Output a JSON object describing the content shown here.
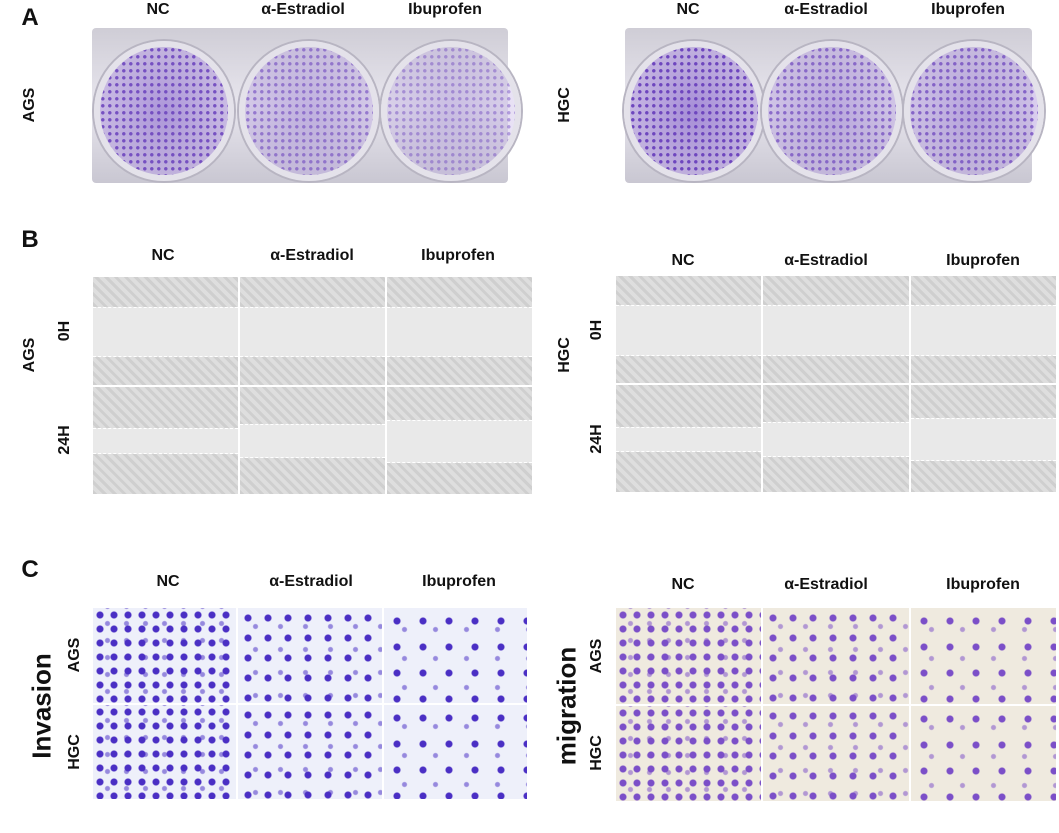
{
  "panel_a": {
    "label": "A",
    "plates": [
      {
        "cell_line": "AGS",
        "columns": [
          "NC",
          "α-Estradiol",
          "Ibuprofen"
        ]
      },
      {
        "cell_line": "HGC",
        "columns": [
          "NC",
          "α-Estradiol",
          "Ibuprofen"
        ]
      }
    ]
  },
  "panel_b": {
    "label": "B",
    "blocks": [
      {
        "cell_line": "AGS",
        "columns": [
          "NC",
          "α-Estradiol",
          "Ibuprofen"
        ],
        "times": [
          "0H",
          "24H"
        ]
      },
      {
        "cell_line": "HGC",
        "columns": [
          "NC",
          "α-Estradiol",
          "Ibuprofen"
        ],
        "times": [
          "0H",
          "24H"
        ]
      }
    ]
  },
  "panel_c": {
    "label": "C",
    "blocks": [
      {
        "assay": "Invasion",
        "columns": [
          "NC",
          "α-Estradiol",
          "Ibuprofen"
        ],
        "rows": [
          "AGS",
          "HGC"
        ]
      },
      {
        "assay": "migration",
        "columns": [
          "NC",
          "α-Estradiol",
          "Ibuprofen"
        ],
        "rows": [
          "AGS",
          "HGC"
        ]
      }
    ]
  }
}
